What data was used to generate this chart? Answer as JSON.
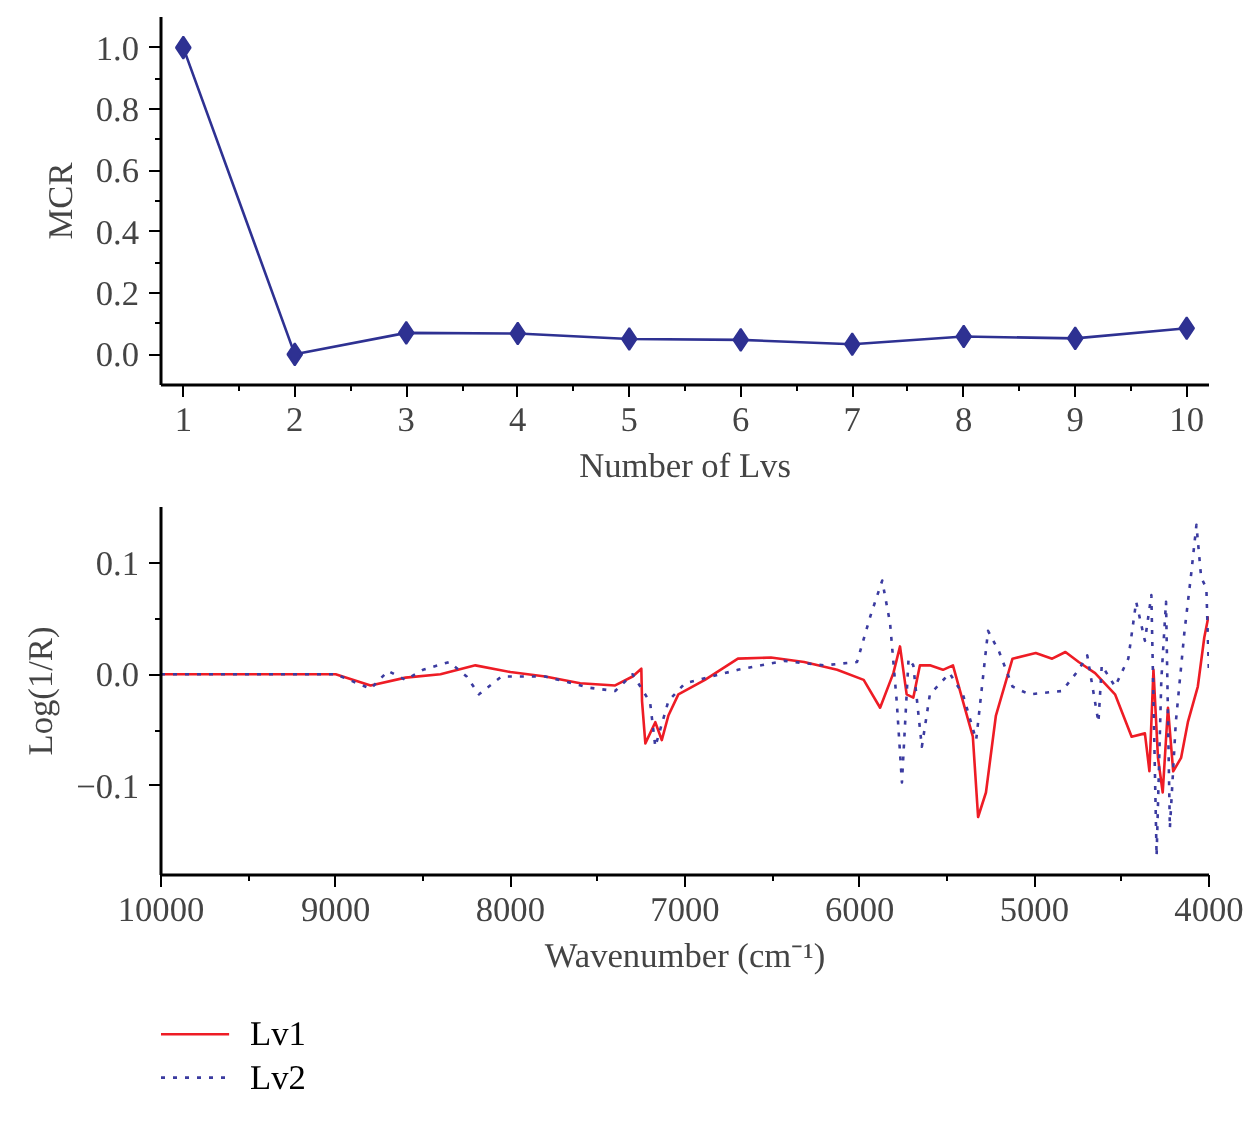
{
  "chart_data": [
    {
      "type": "line",
      "xlabel": "Number of Lvs",
      "ylabel": "MCR",
      "marker": "diamond",
      "line_style": "solid",
      "x": [
        1,
        2,
        3,
        4,
        5,
        6,
        7,
        8,
        9,
        10
      ],
      "series": [
        {
          "color": "#2e3192",
          "values": [
            1.0,
            0.0,
            0.07,
            0.068,
            0.05,
            0.047,
            0.033,
            0.058,
            0.052,
            0.085
          ]
        }
      ],
      "xlim": [
        0.8,
        10.2
      ],
      "ylim": [
        -0.1,
        1.1
      ],
      "xticks": [
        1,
        2,
        3,
        4,
        5,
        6,
        7,
        8,
        9,
        10
      ],
      "yticks": [
        {
          "value": 0,
          "label": "0.0"
        },
        0.2,
        0.4,
        0.6,
        0.8,
        {
          "value": 1,
          "label": "1.0"
        }
      ]
    },
    {
      "type": "line",
      "xlabel": "Wavenumber (cm⁻¹)",
      "ylabel": "Log(1/R)",
      "legend": "bottom left",
      "series": [
        {
          "name": "Lv1",
          "color": "#ee1c25",
          "line_style": "solid",
          "x": [
            10000,
            9500,
            9000,
            8800,
            8600,
            8400,
            8200,
            8000,
            7800,
            7600,
            7400,
            7300,
            7250,
            7246,
            7227,
            7170,
            7133,
            7095,
            7038,
            6886,
            6697,
            6508,
            6318,
            6129,
            5977,
            5883,
            5807,
            5769,
            5731,
            5693,
            5655,
            5598,
            5523,
            5466,
            5409,
            5352,
            5322,
            5277,
            5220,
            5125,
            4992,
            4898,
            4822,
            4746,
            4652,
            4538,
            4443,
            4367,
            4341,
            4318,
            4292,
            4265,
            4235,
            4205,
            4160,
            4121,
            4064,
            4027,
            4003
          ],
          "values": [
            0.0,
            0.0,
            0.0,
            -0.01,
            -0.003,
            0.0,
            0.008,
            0.002,
            -0.002,
            -0.008,
            -0.01,
            -0.002,
            0.005,
            -0.024,
            -0.062,
            -0.043,
            -0.059,
            -0.037,
            -0.018,
            -0.005,
            0.014,
            0.015,
            0.011,
            0.004,
            -0.005,
            -0.03,
            0.001,
            0.025,
            -0.018,
            -0.021,
            0.008,
            0.008,
            0.004,
            0.008,
            -0.024,
            -0.056,
            -0.128,
            -0.106,
            -0.037,
            0.014,
            0.019,
            0.014,
            0.02,
            0.011,
            0.001,
            -0.018,
            -0.056,
            -0.053,
            -0.087,
            0.004,
            -0.075,
            -0.106,
            -0.03,
            -0.087,
            -0.075,
            -0.043,
            -0.011,
            0.033,
            0.052
          ]
        },
        {
          "name": "Lv2",
          "color": "#3b3ba0",
          "line_style": "dotted",
          "x": [
            10000,
            9000,
            8800,
            8700,
            8600,
            8500,
            8350,
            8250,
            8180,
            8050,
            7800,
            7550,
            7400,
            7300,
            7200,
            7170,
            7095,
            7000,
            6697,
            6432,
            6205,
            6015,
            5939,
            5871,
            5826,
            5788,
            5758,
            5720,
            5693,
            5644,
            5598,
            5485,
            5409,
            5333,
            5265,
            5201,
            5125,
            5030,
            4841,
            4746,
            4697,
            4633,
            4614,
            4538,
            4462,
            4417,
            4367,
            4330,
            4300,
            4273,
            4246,
            4224,
            4190,
            4140,
            4102,
            4072,
            4045,
            4015,
            4000
          ],
          "values": [
            0.0,
            0.0,
            -0.013,
            0.003,
            -0.005,
            0.004,
            0.011,
            -0.002,
            -0.018,
            -0.002,
            -0.002,
            -0.012,
            -0.015,
            0.0,
            -0.025,
            -0.065,
            -0.024,
            -0.008,
            0.004,
            0.012,
            0.008,
            0.011,
            0.052,
            0.084,
            0.046,
            -0.024,
            -0.097,
            0.014,
            0.008,
            -0.065,
            -0.018,
            0.001,
            -0.018,
            -0.059,
            0.039,
            0.02,
            -0.011,
            -0.018,
            -0.015,
            0.004,
            0.017,
            -0.043,
            0.008,
            -0.011,
            0.014,
            0.065,
            0.03,
            0.071,
            -0.163,
            -0.005,
            0.065,
            -0.138,
            -0.043,
            0.039,
            0.09,
            0.134,
            0.087,
            0.077,
            0.0
          ]
        }
      ],
      "xlim": [
        10000,
        4000
      ],
      "ylim": [
        -0.18,
        0.15
      ],
      "xticks": [
        10000,
        9000,
        8000,
        7000,
        6000,
        5000,
        4000
      ],
      "yticks": [
        {
          "value": -0.1,
          "label": "−0.1"
        },
        {
          "value": 0,
          "label": "0.0"
        },
        0.1
      ]
    }
  ]
}
